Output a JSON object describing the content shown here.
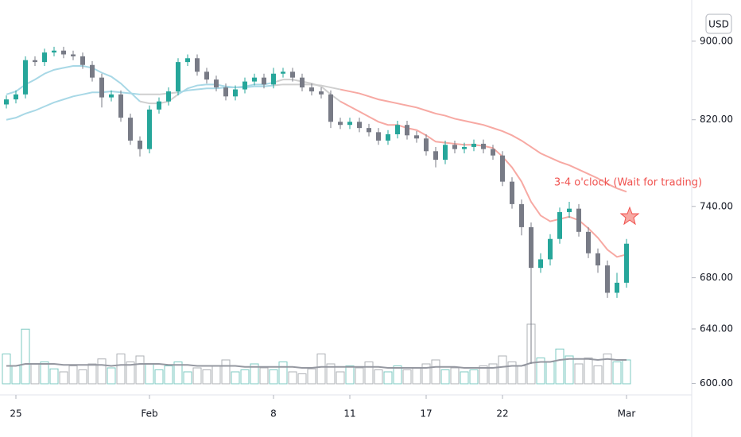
{
  "chart_data": {
    "type": "candlestick",
    "currency_label": "USD",
    "annotation": "3-4 o'clock (Wait for trading)",
    "log_scale": true,
    "ylim": [
      593,
      945
    ],
    "yticks": [
      {
        "value": 600,
        "label": "600.00"
      },
      {
        "value": 640,
        "label": "640.00"
      },
      {
        "value": 680,
        "label": "680.00"
      },
      {
        "value": 740,
        "label": "740.00"
      },
      {
        "value": 820,
        "label": "820.00"
      },
      {
        "value": 900,
        "label": "900.00"
      }
    ],
    "up_color": "#26a69a",
    "down_color": "#787b86",
    "categories": [
      null,
      "25",
      null,
      null,
      null,
      null,
      null,
      null,
      null,
      null,
      null,
      null,
      null,
      null,
      null,
      "Feb",
      null,
      null,
      null,
      null,
      null,
      null,
      null,
      null,
      null,
      null,
      null,
      null,
      "8",
      null,
      null,
      null,
      null,
      null,
      null,
      null,
      "11",
      null,
      null,
      null,
      null,
      null,
      null,
      null,
      "17",
      null,
      null,
      null,
      null,
      null,
      null,
      null,
      "22",
      null,
      null,
      null,
      null,
      null,
      null,
      null,
      null,
      null,
      null,
      null,
      null,
      "Mar"
    ],
    "open": [
      835,
      840,
      845,
      880,
      878,
      888,
      890,
      886,
      884,
      875,
      862,
      842,
      845,
      822,
      800,
      792,
      830,
      838,
      848,
      878,
      882,
      868,
      860,
      852,
      843,
      850,
      858,
      862,
      855,
      866,
      868,
      862,
      852,
      848,
      845,
      818,
      815,
      818,
      812,
      808,
      800,
      806,
      815,
      805,
      802,
      790,
      782,
      796,
      792,
      794,
      797,
      792,
      786,
      762,
      742,
      722,
      688,
      695,
      712,
      735,
      738,
      718,
      700,
      690,
      668,
      676
    ],
    "high": [
      844,
      849,
      884,
      884,
      892,
      894,
      894,
      890,
      888,
      879,
      866,
      849,
      849,
      826,
      804,
      834,
      842,
      852,
      882,
      886,
      886,
      872,
      864,
      856,
      854,
      862,
      866,
      866,
      872,
      872,
      872,
      866,
      856,
      852,
      849,
      822,
      822,
      822,
      816,
      812,
      810,
      819,
      819,
      809,
      806,
      794,
      800,
      800,
      798,
      801,
      801,
      796,
      790,
      766,
      746,
      726,
      700,
      716,
      739,
      744,
      742,
      722,
      704,
      694,
      684,
      712
    ],
    "low": [
      831,
      836,
      841,
      874,
      874,
      884,
      882,
      880,
      871,
      858,
      832,
      838,
      818,
      796,
      785,
      788,
      826,
      834,
      844,
      874,
      864,
      856,
      848,
      839,
      839,
      846,
      854,
      851,
      851,
      862,
      858,
      848,
      844,
      841,
      812,
      811,
      811,
      808,
      804,
      796,
      796,
      802,
      801,
      798,
      786,
      775,
      778,
      788,
      788,
      790,
      788,
      782,
      758,
      738,
      715,
      614,
      684,
      690,
      708,
      730,
      714,
      696,
      684,
      664,
      664,
      672
    ],
    "close": [
      840,
      845,
      880,
      878,
      888,
      890,
      886,
      884,
      875,
      862,
      842,
      845,
      822,
      800,
      792,
      830,
      838,
      848,
      878,
      882,
      868,
      860,
      852,
      843,
      850,
      858,
      862,
      855,
      866,
      868,
      862,
      852,
      848,
      845,
      818,
      815,
      818,
      812,
      808,
      800,
      806,
      815,
      805,
      802,
      790,
      782,
      796,
      792,
      794,
      797,
      792,
      786,
      762,
      742,
      722,
      688,
      695,
      712,
      735,
      738,
      718,
      700,
      690,
      668,
      676,
      708
    ],
    "volume": [
      30,
      18,
      55,
      20,
      22,
      15,
      12,
      18,
      14,
      20,
      25,
      16,
      30,
      22,
      28,
      20,
      14,
      18,
      22,
      12,
      16,
      14,
      18,
      24,
      12,
      14,
      20,
      16,
      14,
      22,
      12,
      10,
      15,
      30,
      20,
      12,
      18,
      16,
      22,
      14,
      12,
      18,
      14,
      16,
      20,
      24,
      14,
      16,
      12,
      14,
      18,
      20,
      28,
      22,
      18,
      60,
      26,
      22,
      35,
      28,
      20,
      26,
      18,
      30,
      22,
      24
    ],
    "volume_ma": [
      18,
      18,
      20,
      20,
      20,
      20,
      19,
      19,
      19,
      19,
      19,
      18,
      19,
      19,
      20,
      20,
      20,
      19,
      19,
      19,
      18,
      18,
      18,
      18,
      18,
      17,
      17,
      17,
      17,
      17,
      17,
      16,
      16,
      17,
      17,
      17,
      17,
      17,
      17,
      17,
      16,
      16,
      16,
      16,
      16,
      17,
      17,
      17,
      16,
      16,
      16,
      16,
      17,
      18,
      18,
      21,
      22,
      22,
      24,
      25,
      25,
      25,
      24,
      25,
      24,
      24
    ],
    "volume_ma_color": "#9598a1",
    "volume_lim": [
      0,
      60
    ],
    "ribbon": [
      {
        "color": "#a8d8e6",
        "values": [
          845,
          848,
          855,
          860,
          866,
          870,
          872,
          874,
          874,
          872,
          867,
          863,
          856,
          847,
          838,
          null,
          null,
          null,
          845,
          851,
          854,
          855,
          855,
          853,
          852,
          853,
          855,
          855,
          857,
          null,
          null,
          null,
          null,
          null,
          null,
          null,
          null,
          null,
          null,
          null,
          null,
          null,
          null,
          null,
          null,
          null,
          null,
          null,
          null,
          null,
          null,
          null,
          null,
          null,
          null,
          null,
          null,
          null,
          null,
          null,
          null,
          null,
          null,
          null,
          null,
          null
        ]
      },
      {
        "color": "#cfcfcf",
        "values": [
          null,
          null,
          null,
          null,
          null,
          null,
          null,
          null,
          null,
          null,
          null,
          null,
          null,
          null,
          838,
          836,
          836,
          838,
          845,
          null,
          null,
          null,
          null,
          null,
          null,
          null,
          null,
          null,
          857,
          860,
          860,
          858,
          856,
          853,
          845,
          838,
          null,
          null,
          null,
          null,
          null,
          null,
          null,
          null,
          null,
          null,
          null,
          null,
          null,
          null,
          null,
          null,
          null,
          null,
          null,
          null,
          null,
          null,
          null,
          null,
          null,
          null,
          null,
          null,
          null,
          null
        ]
      },
      {
        "color": "#f7a9a3",
        "values": [
          null,
          null,
          null,
          null,
          null,
          null,
          null,
          null,
          null,
          null,
          null,
          null,
          null,
          null,
          null,
          null,
          null,
          null,
          null,
          null,
          null,
          null,
          null,
          null,
          null,
          null,
          null,
          null,
          null,
          null,
          null,
          null,
          null,
          null,
          null,
          838,
          833,
          828,
          823,
          818,
          815,
          815,
          812,
          810,
          805,
          799,
          798,
          797,
          796,
          796,
          795,
          793,
          785,
          775,
          762,
          744,
          732,
          727,
          729,
          731,
          728,
          721,
          713,
          703,
          697,
          699
        ]
      },
      {
        "color": "#a8d8e6",
        "values": [
          820,
          822,
          826,
          829,
          833,
          837,
          840,
          843,
          845,
          847,
          847,
          848,
          847,
          846,
          845,
          null,
          null,
          null,
          847,
          849,
          850,
          851,
          851,
          852,
          852,
          852,
          853,
          853,
          854,
          null,
          null,
          null,
          null,
          null,
          null,
          null,
          null,
          null,
          null,
          null,
          null,
          null,
          null,
          null,
          null,
          null,
          null,
          null,
          null,
          null,
          null,
          null,
          null,
          null,
          null,
          null,
          null,
          null,
          null,
          null,
          null,
          null,
          null,
          null,
          null,
          null
        ]
      },
      {
        "color": "#cfcfcf",
        "values": [
          null,
          null,
          null,
          null,
          null,
          null,
          null,
          null,
          null,
          null,
          null,
          null,
          null,
          null,
          845,
          845,
          845,
          846,
          847,
          null,
          null,
          null,
          null,
          null,
          null,
          null,
          null,
          null,
          854,
          855,
          855,
          855,
          855,
          854,
          852,
          850,
          null,
          null,
          null,
          null,
          null,
          null,
          null,
          null,
          null,
          null,
          null,
          null,
          null,
          null,
          null,
          null,
          null,
          null,
          null,
          null,
          null,
          null,
          null,
          null,
          null,
          null,
          null,
          null,
          null,
          null
        ]
      },
      {
        "color": "#f7a9a3",
        "values": [
          null,
          null,
          null,
          null,
          null,
          null,
          null,
          null,
          null,
          null,
          null,
          null,
          null,
          null,
          null,
          null,
          null,
          null,
          null,
          null,
          null,
          null,
          null,
          null,
          null,
          null,
          null,
          null,
          null,
          null,
          null,
          null,
          null,
          null,
          null,
          850,
          848,
          846,
          843,
          840,
          838,
          836,
          834,
          832,
          829,
          826,
          824,
          821,
          819,
          817,
          815,
          812,
          809,
          805,
          800,
          794,
          788,
          784,
          780,
          777,
          773,
          769,
          765,
          760,
          756,
          753
        ]
      }
    ]
  }
}
